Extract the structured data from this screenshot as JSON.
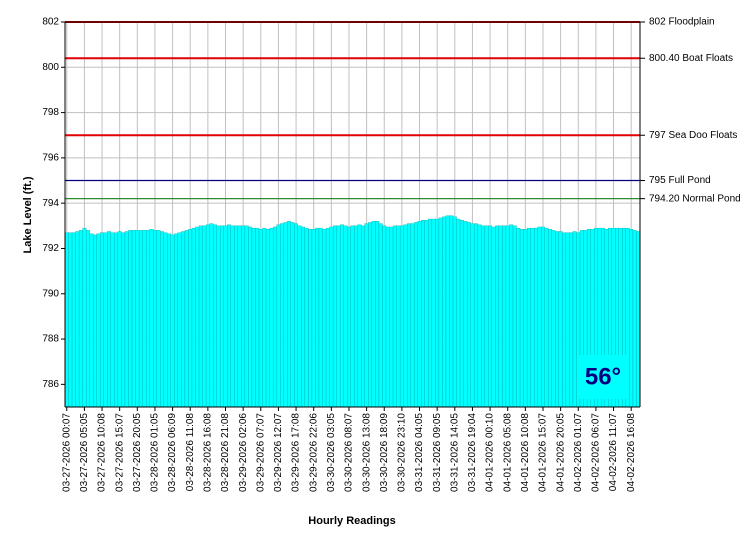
{
  "chart_data": {
    "type": "bar",
    "x_label": "Hourly Readings",
    "y_label": "Lake Level (ft.)",
    "ylim": [
      785,
      802
    ],
    "yticks": [
      786,
      788,
      790,
      792,
      794,
      796,
      798,
      800,
      802
    ],
    "grid": true,
    "color": "#00ffff",
    "annotation": "56°",
    "reference_lines": [
      {
        "value": 802,
        "label": "802 Floodplain",
        "color": "#e00000"
      },
      {
        "value": 800.4,
        "label": "800.40 Boat Floats",
        "color": "#e00000"
      },
      {
        "value": 797,
        "label": "797 Sea Doo Floats",
        "color": "#e00000"
      },
      {
        "value": 795,
        "label": "795 Full Pond",
        "color": "#000080"
      },
      {
        "value": 794.2,
        "label": "794.20 Normal Pond",
        "color": "#2e8b2e"
      }
    ],
    "categories": [
      "03-27-2026 00:07",
      null,
      null,
      null,
      null,
      "03-27-2026 05:05",
      null,
      null,
      null,
      null,
      "03-27-2026 10:08",
      null,
      null,
      null,
      null,
      "03-27-2026 15:07",
      null,
      null,
      null,
      null,
      "03-27-2026 20:05",
      null,
      null,
      null,
      null,
      "03-28-2026 01:05",
      null,
      null,
      null,
      null,
      "03-28-2026 06:09",
      null,
      null,
      null,
      null,
      "03-28-2026 11:08",
      null,
      null,
      null,
      null,
      "03-28-2026 16:08",
      null,
      null,
      null,
      null,
      "03-28-2026 21:08",
      null,
      null,
      null,
      null,
      "03-29-2026 02:06",
      null,
      null,
      null,
      null,
      "03-29-2026 07:07",
      null,
      null,
      null,
      null,
      "03-29-2026 12:07",
      null,
      null,
      null,
      null,
      "03-29-2026 17:08",
      null,
      null,
      null,
      null,
      "03-29-2026 22:06",
      null,
      null,
      null,
      null,
      "03-30-2026 03:05",
      null,
      null,
      null,
      null,
      "03-30-2026 08:07",
      null,
      null,
      null,
      null,
      "03-30-2026 13:08",
      null,
      null,
      null,
      null,
      "03-30-2026 18:09",
      null,
      null,
      null,
      null,
      "03-30-2026 23:10",
      null,
      null,
      null,
      null,
      "03-31-2026 04:05",
      null,
      null,
      null,
      null,
      "03-31-2026 09:05",
      null,
      null,
      null,
      null,
      "03-31-2026 14:05",
      null,
      null,
      null,
      null,
      "03-31-2026 19:04",
      null,
      null,
      null,
      null,
      "04-01-2026 00:10",
      null,
      null,
      null,
      null,
      "04-01-2026 05:08",
      null,
      null,
      null,
      null,
      "04-01-2026 10:08",
      null,
      null,
      null,
      null,
      "04-01-2026 15:07",
      null,
      null,
      null,
      null,
      "04-01-2026 20:05",
      null,
      null,
      null,
      null,
      "04-02-2026 01:07",
      null,
      null,
      null,
      null,
      "04-02-2026 06:07",
      null,
      null,
      null,
      null,
      "04-02-2026 11:07",
      null,
      null,
      null,
      null,
      "04-02-2026 16:08",
      null,
      null
    ],
    "values": [
      792.7,
      792.7,
      792.7,
      792.75,
      792.8,
      792.9,
      792.8,
      792.65,
      792.6,
      792.65,
      792.7,
      792.7,
      792.75,
      792.7,
      792.7,
      792.75,
      792.7,
      792.75,
      792.8,
      792.8,
      792.8,
      792.8,
      792.8,
      792.8,
      792.85,
      792.8,
      792.8,
      792.75,
      792.7,
      792.65,
      792.6,
      792.65,
      792.7,
      792.75,
      792.8,
      792.85,
      792.9,
      792.95,
      793.0,
      793.0,
      793.05,
      793.1,
      793.05,
      793.0,
      793.0,
      793.0,
      793.05,
      793.0,
      793.0,
      793.0,
      793.0,
      793.0,
      792.95,
      792.9,
      792.9,
      792.85,
      792.9,
      792.85,
      792.9,
      792.95,
      793.05,
      793.1,
      793.15,
      793.2,
      793.15,
      793.1,
      793.0,
      792.95,
      792.9,
      792.85,
      792.85,
      792.9,
      792.9,
      792.85,
      792.9,
      792.95,
      793.0,
      793.0,
      793.05,
      793.0,
      792.95,
      793.0,
      793.0,
      793.05,
      793.0,
      793.1,
      793.15,
      793.2,
      793.2,
      793.1,
      793.0,
      792.95,
      792.95,
      793.0,
      793.0,
      793.0,
      793.05,
      793.1,
      793.1,
      793.15,
      793.2,
      793.25,
      793.25,
      793.3,
      793.3,
      793.3,
      793.35,
      793.4,
      793.45,
      793.45,
      793.4,
      793.3,
      793.25,
      793.2,
      793.15,
      793.1,
      793.1,
      793.05,
      793.0,
      793.0,
      793.0,
      792.95,
      793.0,
      793.0,
      793.0,
      793.0,
      793.05,
      793.0,
      792.9,
      792.85,
      792.85,
      792.9,
      792.9,
      792.9,
      792.95,
      792.95,
      792.9,
      792.85,
      792.8,
      792.75,
      792.75,
      792.7,
      792.7,
      792.7,
      792.75,
      792.7,
      792.8,
      792.8,
      792.85,
      792.85,
      792.9,
      792.9,
      792.9,
      792.85,
      792.9,
      792.9,
      792.9,
      792.9,
      792.9,
      792.9,
      792.85,
      792.8,
      792.75
    ]
  }
}
